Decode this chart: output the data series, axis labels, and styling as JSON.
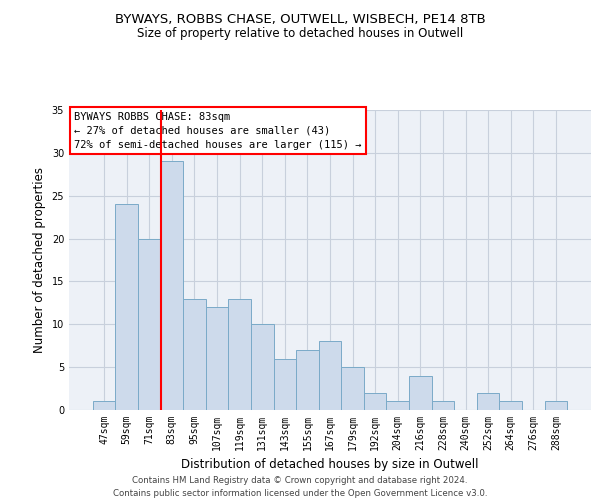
{
  "title1": "BYWAYS, ROBBS CHASE, OUTWELL, WISBECH, PE14 8TB",
  "title2": "Size of property relative to detached houses in Outwell",
  "xlabel": "Distribution of detached houses by size in Outwell",
  "ylabel": "Number of detached properties",
  "footer1": "Contains HM Land Registry data © Crown copyright and database right 2024.",
  "footer2": "Contains public sector information licensed under the Open Government Licence v3.0.",
  "bar_labels": [
    "47sqm",
    "59sqm",
    "71sqm",
    "83sqm",
    "95sqm",
    "107sqm",
    "119sqm",
    "131sqm",
    "143sqm",
    "155sqm",
    "167sqm",
    "179sqm",
    "192sqm",
    "204sqm",
    "216sqm",
    "228sqm",
    "240sqm",
    "252sqm",
    "264sqm",
    "276sqm",
    "288sqm"
  ],
  "bar_values": [
    1,
    24,
    20,
    29,
    13,
    12,
    13,
    10,
    6,
    7,
    8,
    5,
    2,
    1,
    4,
    1,
    0,
    2,
    1,
    0,
    1
  ],
  "bar_color": "#cddaeb",
  "bar_edge_color": "#7aaac8",
  "vline_color": "red",
  "vline_x_idx": 3,
  "annotation_title": "BYWAYS ROBBS CHASE: 83sqm",
  "annotation_line1": "← 27% of detached houses are smaller (43)",
  "annotation_line2": "72% of semi-detached houses are larger (115) →",
  "annotation_box_color": "white",
  "annotation_box_edge": "red",
  "ylim": [
    0,
    35
  ],
  "yticks": [
    0,
    5,
    10,
    15,
    20,
    25,
    30,
    35
  ],
  "bg_color": "#edf1f7",
  "grid_color": "#c8d0dc"
}
